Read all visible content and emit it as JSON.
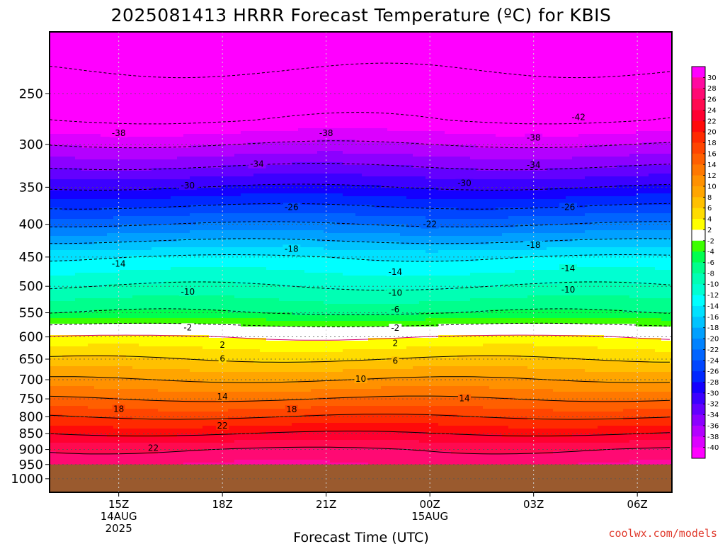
{
  "title": "2025081413 HRRR Forecast Temperature (ºC) for KBIS",
  "credit": "coolwx.com/models",
  "chart_data": {
    "type": "heatmap",
    "title": "2025081413 HRRR Forecast Temperature (ºC) for KBIS",
    "xlabel": "Forecast Time (UTC)",
    "ylabel": "",
    "y_scale": "log-pressure",
    "ylim": [
      1050,
      200
    ],
    "xlim": [
      13,
      31
    ],
    "y_ticks": [
      250,
      300,
      350,
      400,
      450,
      500,
      550,
      600,
      650,
      700,
      750,
      800,
      850,
      900,
      950,
      1000
    ],
    "x_ticks": [
      {
        "value": 15,
        "lines": [
          "15Z",
          "14AUG",
          "2025"
        ]
      },
      {
        "value": 18,
        "lines": [
          "18Z"
        ]
      },
      {
        "value": 21,
        "lines": [
          "21Z"
        ]
      },
      {
        "value": 24,
        "lines": [
          "00Z",
          "15AUG"
        ]
      },
      {
        "value": 27,
        "lines": [
          "03Z"
        ]
      },
      {
        "value": 30,
        "lines": [
          "06Z"
        ]
      }
    ],
    "grid": true,
    "surface_pressure": 950,
    "temperature_profile": {
      "pressure_levels": [
        210,
        230,
        250,
        275,
        300,
        325,
        350,
        375,
        400,
        425,
        450,
        500,
        550,
        575,
        600,
        650,
        700,
        750,
        800,
        850,
        900,
        950
      ],
      "temperature_c": [
        -48,
        -46,
        -44,
        -42,
        -38,
        -34,
        -30,
        -26,
        -22,
        -18,
        -14,
        -10,
        -6,
        -2,
        2,
        6,
        10,
        14,
        18,
        22,
        26,
        28
      ]
    },
    "colorbar": {
      "ticks": [
        30,
        28,
        26,
        24,
        22,
        20,
        18,
        16,
        14,
        12,
        10,
        8,
        6,
        4,
        2,
        -2,
        -4,
        -6,
        -8,
        -10,
        -12,
        -14,
        -16,
        -18,
        -20,
        -22,
        -24,
        -26,
        -28,
        -30,
        -32,
        -34,
        -36,
        -38,
        -40
      ],
      "colors": [
        "#ff00ff",
        "#ff0aa0",
        "#ff0a73",
        "#ff0a50",
        "#ff0030",
        "#ff0a0a",
        "#ff2a00",
        "#ff4500",
        "#ff5f00",
        "#ff7800",
        "#ff9100",
        "#ffa500",
        "#ffc000",
        "#ffdc00",
        "#ffff00",
        "#ffffff",
        "#3cff00",
        "#00ff50",
        "#00ff8c",
        "#00ffb4",
        "#00ffd2",
        "#00ffff",
        "#00e1ff",
        "#00c3ff",
        "#00a0ff",
        "#0082ff",
        "#0064ff",
        "#0046ff",
        "#0028ff",
        "#1400ff",
        "#3c00ff",
        "#6400ff",
        "#8c00ff",
        "#b400ff",
        "#dc00ff",
        "#ff00ff"
      ]
    },
    "contour_labels": [
      {
        "x": 15,
        "p": 288,
        "text": "-38"
      },
      {
        "x": 21,
        "p": 288,
        "text": "-38"
      },
      {
        "x": 27,
        "p": 293,
        "text": "-38"
      },
      {
        "x": 28.3,
        "p": 272,
        "text": "-42"
      },
      {
        "x": 19,
        "p": 322,
        "text": "-34"
      },
      {
        "x": 27,
        "p": 323,
        "text": "-34"
      },
      {
        "x": 17,
        "p": 348,
        "text": "-30"
      },
      {
        "x": 25,
        "p": 345,
        "text": "-30"
      },
      {
        "x": 20,
        "p": 376,
        "text": "-26"
      },
      {
        "x": 28,
        "p": 376,
        "text": "-26"
      },
      {
        "x": 24,
        "p": 400,
        "text": "-22"
      },
      {
        "x": 20,
        "p": 437,
        "text": "-18"
      },
      {
        "x": 27,
        "p": 431,
        "text": "-18"
      },
      {
        "x": 15,
        "p": 461,
        "text": "-14"
      },
      {
        "x": 23,
        "p": 475,
        "text": "-14"
      },
      {
        "x": 28,
        "p": 469,
        "text": "-14"
      },
      {
        "x": 17,
        "p": 510,
        "text": "-10"
      },
      {
        "x": 23,
        "p": 512,
        "text": "-10"
      },
      {
        "x": 28,
        "p": 506,
        "text": "-10"
      },
      {
        "x": 23,
        "p": 544,
        "text": "-6"
      },
      {
        "x": 17,
        "p": 580,
        "text": "-2"
      },
      {
        "x": 23,
        "p": 581,
        "text": "-2"
      },
      {
        "x": 18,
        "p": 618,
        "text": "2"
      },
      {
        "x": 23,
        "p": 614,
        "text": "2"
      },
      {
        "x": 18,
        "p": 649,
        "text": "6"
      },
      {
        "x": 23,
        "p": 654,
        "text": "6"
      },
      {
        "x": 22,
        "p": 698,
        "text": "10"
      },
      {
        "x": 18,
        "p": 744,
        "text": "14"
      },
      {
        "x": 25,
        "p": 749,
        "text": "14"
      },
      {
        "x": 15,
        "p": 778,
        "text": "18"
      },
      {
        "x": 20,
        "p": 779,
        "text": "18"
      },
      {
        "x": 18,
        "p": 826,
        "text": "22"
      },
      {
        "x": 16,
        "p": 895,
        "text": "22"
      }
    ]
  }
}
